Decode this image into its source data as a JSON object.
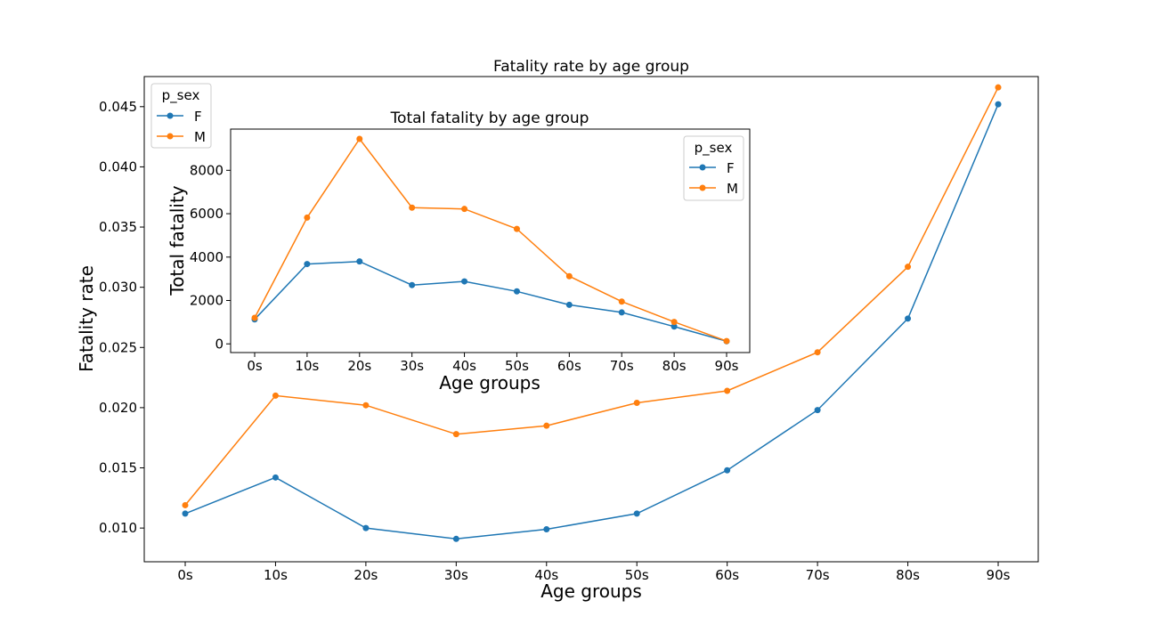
{
  "colors": {
    "F": "#1f77b4",
    "M": "#ff7f0e"
  },
  "chart_data": [
    {
      "type": "line",
      "title": "Fatality rate by age group",
      "xlabel": "Age groups",
      "ylabel": "Fatality rate",
      "categories": [
        "0s",
        "10s",
        "20s",
        "30s",
        "40s",
        "50s",
        "60s",
        "70s",
        "80s",
        "90s"
      ],
      "ylim": [
        0.0072,
        0.0475
      ],
      "yticks": [
        0.01,
        0.015,
        0.02,
        0.025,
        0.03,
        0.035,
        0.04,
        0.045
      ],
      "ytick_labels": [
        "0.010",
        "0.015",
        "0.020",
        "0.025",
        "0.030",
        "0.035",
        "0.040",
        "0.045"
      ],
      "grid": false,
      "legend": {
        "title": "p_sex",
        "position": "upper-left"
      },
      "series": [
        {
          "name": "F",
          "values": [
            0.0112,
            0.0142,
            0.01,
            0.0091,
            0.0099,
            0.0112,
            0.0148,
            0.0198,
            0.0274,
            0.0452
          ]
        },
        {
          "name": "M",
          "values": [
            0.0119,
            0.021,
            0.0202,
            0.0178,
            0.0185,
            0.0204,
            0.0214,
            0.0246,
            0.0317,
            0.0466
          ]
        }
      ]
    },
    {
      "type": "line",
      "title": "Total fatality by age group",
      "xlabel": "Age groups",
      "ylabel": "Total fatality",
      "categories": [
        "0s",
        "10s",
        "20s",
        "30s",
        "40s",
        "50s",
        "60s",
        "70s",
        "80s",
        "90s"
      ],
      "ylim": [
        -400,
        9900
      ],
      "yticks": [
        0,
        2000,
        4000,
        6000,
        8000
      ],
      "ytick_labels": [
        "0",
        "2000",
        "4000",
        "6000",
        "8000"
      ],
      "grid": false,
      "legend": {
        "title": "p_sex",
        "position": "upper-right"
      },
      "series": [
        {
          "name": "F",
          "values": [
            1130,
            3680,
            3800,
            2710,
            2880,
            2420,
            1800,
            1450,
            800,
            120
          ]
        },
        {
          "name": "M",
          "values": [
            1200,
            5820,
            9450,
            6280,
            6220,
            5300,
            3120,
            1950,
            1010,
            130
          ]
        }
      ]
    }
  ]
}
